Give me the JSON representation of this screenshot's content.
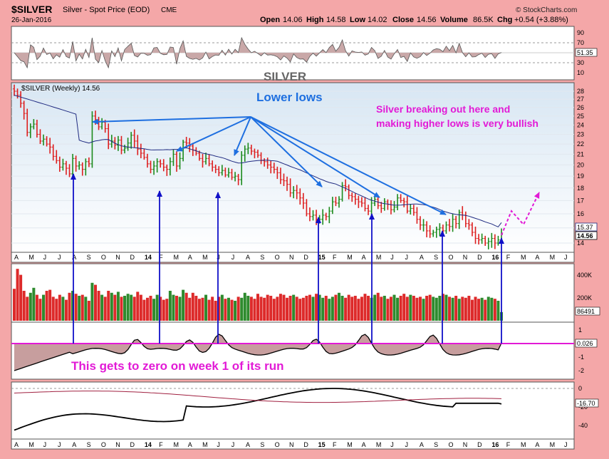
{
  "header": {
    "symbol": "$SILVER",
    "name": "Silver - Spot Price (EOD)",
    "exchange": "CME",
    "date": "26-Jan-2016",
    "open_label": "Open",
    "open": "14.06",
    "high_label": "High",
    "high": "14.58",
    "low_label": "Low",
    "low": "14.02",
    "close_label": "Close",
    "close": "14.56",
    "volume_label": "Volume",
    "volume": "86.5K",
    "chg_label": "Chg",
    "chg": "+0.54 (+3.88%)",
    "watermark": "© StockCharts.com"
  },
  "rsi_panel": {
    "ticks": [
      "90",
      "70",
      "50",
      "30",
      "10"
    ],
    "value": "51.35",
    "label": "SILVER"
  },
  "price_panel": {
    "legend": "$SILVER (Weekly) 14.56",
    "ma_value": "15.37",
    "price_value": "14.56",
    "y_ticks": [
      "28",
      "27",
      "26",
      "25",
      "24",
      "23",
      "22",
      "21",
      "20",
      "19",
      "18",
      "17",
      "16",
      "15",
      "14"
    ]
  },
  "volume_panel": {
    "ticks": [
      "400K",
      "200K"
    ],
    "value": "86491"
  },
  "oscillator_panel": {
    "ticks": [
      "1",
      "0",
      "-1",
      "-2"
    ],
    "value": "0.026"
  },
  "bottom_panel": {
    "ticks": [
      "0",
      "-20",
      "-40"
    ],
    "value": "-16.70"
  },
  "x_axis": {
    "labels": [
      "A",
      "M",
      "J",
      "J",
      "A",
      "S",
      "O",
      "N",
      "D",
      "14",
      "F",
      "M",
      "A",
      "M",
      "J",
      "J",
      "A",
      "S",
      "O",
      "N",
      "D",
      "15",
      "F",
      "M",
      "A",
      "M",
      "J",
      "J",
      "A",
      "S",
      "O",
      "N",
      "D",
      "16",
      "F",
      "M",
      "A",
      "M",
      "J"
    ]
  },
  "annotations": {
    "lower_lows": "Lower lows",
    "bullish_line1": "Silver breaking out here and",
    "bullish_line2": "making higher lows is very bullish",
    "zero_note": "This gets to zero on week 1 of its run"
  },
  "colors": {
    "background": "#f4a7a8",
    "panel": "#ffffff",
    "price_panel_gradient_top": "#d4e4f1",
    "up_bar": "#1c8a1c",
    "down_bar": "#dd1f1f",
    "moving_average": "#1f2a80",
    "annotation_blue": "#1e6fe0",
    "annotation_magenta": "#e21ad6",
    "marker_arrow": "#1010c8"
  },
  "chart_data": {
    "type": "candlestick-weekly",
    "title": "$SILVER (Weekly) 14.56",
    "ylabel": "",
    "ylim": [
      14,
      28.5
    ],
    "scale": "log",
    "close_series": [
      28,
      27.5,
      26.5,
      25.3,
      23.2,
      23.8,
      24.1,
      23.0,
      22.3,
      22.5,
      22.0,
      21.7,
      20.8,
      20.4,
      19.8,
      20.1,
      19.7,
      19.2,
      20.6,
      19.9,
      20.0,
      19.6,
      20.3,
      20.1,
      25.0,
      24.6,
      23.8,
      24.3,
      23.6,
      22.0,
      22.3,
      21.9,
      22.4,
      21.4,
      21.6,
      22.1,
      22.9,
      22.3,
      21.5,
      21.1,
      20.7,
      20.1,
      19.6,
      19.9,
      20.3,
      20.1,
      19.8,
      19.6,
      20.3,
      21.0,
      19.9,
      20.6,
      22.2,
      22.1,
      21.8,
      21.4,
      21.1,
      20.6,
      20.3,
      20.6,
      20.1,
      19.8,
      19.6,
      19.3,
      19.5,
      19.1,
      19.3,
      18.9,
      19.0,
      18.7,
      20.9,
      21.5,
      21.6,
      21.3,
      21.2,
      20.9,
      20.4,
      20.3,
      20.0,
      19.8,
      19.6,
      19.3,
      18.7,
      18.6,
      18.3,
      17.6,
      17.8,
      17.6,
      17.2,
      16.8,
      16.0,
      15.8,
      15.9,
      15.6,
      15.6,
      15.9,
      15.8,
      16.2,
      16.9,
      16.8,
      17.1,
      18.2,
      18.1,
      17.4,
      17.3,
      17.1,
      16.9,
      16.8,
      16.4,
      16.2,
      16.8,
      17.1,
      16.6,
      16.4,
      16.9,
      16.7,
      16.3,
      16.5,
      17.2,
      17.0,
      16.9,
      16.2,
      16.4,
      16.1,
      15.6,
      15.2,
      15.2,
      14.8,
      14.6,
      14.7,
      14.9,
      15.0,
      14.8,
      15.2,
      15.1,
      15.6,
      15.3,
      16.1,
      15.9,
      15.3,
      15.2,
      14.7,
      14.3,
      14.2,
      14.3,
      14.0,
      14.1,
      14.3,
      14.0,
      14.2,
      14.56
    ],
    "moving_average": {
      "label": "",
      "current": 15.37
    },
    "volume_series_k": [
      320,
      520,
      460,
      300,
      240,
      280,
      330,
      260,
      220,
      260,
      300,
      310,
      240,
      220,
      260,
      240,
      210,
      280,
      300,
      270,
      250,
      260,
      240,
      200,
      380,
      360,
      300,
      260,
      240,
      300,
      280,
      260,
      290,
      240,
      250,
      270,
      260,
      240,
      290,
      260,
      210,
      230,
      250,
      220,
      260,
      240,
      210,
      220,
      300,
      260,
      250,
      240,
      310,
      280,
      230,
      280,
      250,
      220,
      230,
      260,
      210,
      240,
      200,
      240,
      260,
      220,
      230,
      210,
      200,
      240,
      230,
      280,
      250,
      240,
      220,
      270,
      240,
      230,
      260,
      250,
      220,
      240,
      270,
      260,
      230,
      250,
      260,
      240,
      220,
      230,
      250,
      260,
      240,
      270,
      260,
      230,
      250,
      220,
      240,
      260,
      280,
      250,
      230,
      260,
      240,
      250,
      220,
      240,
      270,
      250,
      230,
      260,
      280,
      240,
      250,
      220,
      240,
      260,
      230,
      250,
      270,
      240,
      260,
      250,
      230,
      240,
      220,
      250,
      260,
      240,
      230,
      250,
      270,
      260,
      240,
      230,
      250,
      220,
      240,
      230,
      250,
      210,
      240,
      220,
      230,
      210,
      240,
      230,
      220,
      200,
      86.5
    ]
  }
}
